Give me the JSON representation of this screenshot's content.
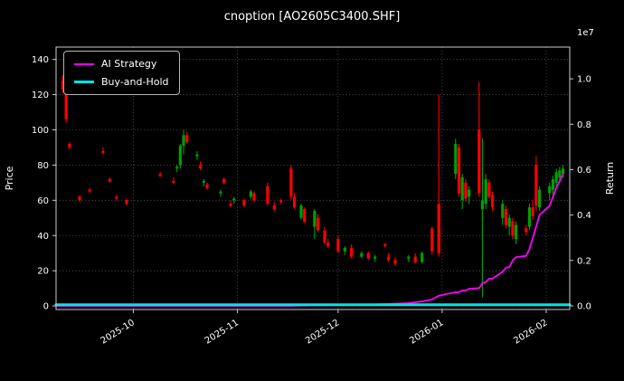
{
  "figure": {
    "background": "#000000",
    "text_color": "#ffffff"
  },
  "chart_data": {
    "type": "candlestick+line",
    "title": "cnoption [AO2605C3400.SHF]",
    "ylabel_left": "Price",
    "ylabel_right": "Return",
    "right_axis_multiplier": "1e7",
    "legend_position": "upper-left",
    "grid": true,
    "xlim": [
      "2025-09-08",
      "2026-02-08"
    ],
    "ylim_left": [
      -2,
      147
    ],
    "ylim_right": [
      -0.016,
      1.14
    ],
    "yticks_left": [
      0,
      20,
      40,
      60,
      80,
      100,
      120,
      140
    ],
    "yticks_right": [
      "0.0",
      "0.2",
      "0.4",
      "0.6",
      "0.8",
      "1.0"
    ],
    "xticks": [
      {
        "date": "2025-10-01",
        "label": "2025-10"
      },
      {
        "date": "2025-11-01",
        "label": "2025-11"
      },
      {
        "date": "2025-12-01",
        "label": "2025-12"
      },
      {
        "date": "2026-01-01",
        "label": "2026-01"
      },
      {
        "date": "2026-02-01",
        "label": "2026-02"
      }
    ],
    "colors": {
      "up": "#00a000",
      "down": "#ff0000",
      "ai": "#ff00ff",
      "bh": "#00e5e5",
      "grid": "#aaaaaa",
      "spine": "#cccccc",
      "text": "#ffffff",
      "background": "#000000"
    },
    "candles": [
      [
        "2025-09-10",
        128,
        131,
        121,
        123
      ],
      [
        "2025-09-11",
        122,
        124,
        104,
        106
      ],
      [
        "2025-09-12",
        92,
        93,
        89,
        90
      ],
      [
        "2025-09-15",
        62,
        63,
        59,
        60
      ],
      [
        "2025-09-18",
        66,
        67,
        64,
        65
      ],
      [
        "2025-09-22",
        88,
        90,
        86,
        87
      ],
      [
        "2025-09-24",
        72,
        73,
        70,
        71
      ],
      [
        "2025-09-26",
        62,
        63,
        60,
        61
      ],
      [
        "2025-09-29",
        60,
        61,
        57,
        58
      ],
      [
        "2025-10-09",
        75,
        76,
        73,
        74
      ],
      [
        "2025-10-13",
        71,
        73,
        69,
        70
      ],
      [
        "2025-10-14",
        78,
        80,
        76,
        79
      ],
      [
        "2025-10-15",
        80,
        92,
        78,
        91
      ],
      [
        "2025-10-16",
        91,
        100,
        86,
        97
      ],
      [
        "2025-10-17",
        97,
        99,
        92,
        93
      ],
      [
        "2025-10-20",
        85,
        88,
        83,
        86
      ],
      [
        "2025-10-21",
        80,
        82,
        77,
        78
      ],
      [
        "2025-10-22",
        70,
        72,
        68,
        71
      ],
      [
        "2025-10-23",
        69,
        70,
        66,
        67
      ],
      [
        "2025-10-27",
        64,
        66,
        62,
        65
      ],
      [
        "2025-10-28",
        72,
        73,
        69,
        70
      ],
      [
        "2025-10-30",
        58,
        60,
        56,
        57
      ],
      [
        "2025-10-31",
        60,
        62,
        58,
        61
      ],
      [
        "2025-11-03",
        60,
        61,
        56,
        57
      ],
      [
        "2025-11-05",
        62,
        66,
        61,
        65
      ],
      [
        "2025-11-06",
        64,
        65,
        59,
        60
      ],
      [
        "2025-11-10",
        68,
        70,
        57,
        58
      ],
      [
        "2025-11-12",
        57,
        59,
        54,
        55
      ],
      [
        "2025-11-14",
        60,
        61,
        58,
        59
      ],
      [
        "2025-11-17",
        78,
        80,
        60,
        62
      ],
      [
        "2025-11-18",
        62,
        64,
        55,
        56
      ],
      [
        "2025-11-20",
        50,
        58,
        49,
        57
      ],
      [
        "2025-11-21",
        55,
        56,
        47,
        48
      ],
      [
        "2025-11-24",
        45,
        55,
        38,
        54
      ],
      [
        "2025-11-25",
        50,
        52,
        42,
        43
      ],
      [
        "2025-11-27",
        43,
        45,
        35,
        36
      ],
      [
        "2025-11-28",
        36,
        38,
        33,
        34
      ],
      [
        "2025-12-01",
        38,
        40,
        30,
        31
      ],
      [
        "2025-12-03",
        31,
        34,
        29,
        33
      ],
      [
        "2025-12-05",
        33,
        35,
        27,
        28
      ],
      [
        "2025-12-08",
        28,
        31,
        27,
        30
      ],
      [
        "2025-12-10",
        30,
        31,
        26,
        27
      ],
      [
        "2025-12-12",
        27,
        29,
        25,
        28
      ],
      [
        "2025-12-15",
        35,
        36,
        33,
        34
      ],
      [
        "2025-12-16",
        28,
        30,
        25,
        26
      ],
      [
        "2025-12-18",
        26,
        28,
        23,
        24
      ],
      [
        "2025-12-22",
        27,
        29,
        25,
        28
      ],
      [
        "2025-12-24",
        28,
        30,
        24,
        25
      ],
      [
        "2025-12-26",
        25,
        31,
        24,
        30
      ],
      [
        "2025-12-29",
        44,
        45,
        29,
        31
      ],
      [
        "2025-12-31",
        58,
        120,
        28,
        30
      ],
      [
        "2026-01-05",
        75,
        95,
        72,
        92
      ],
      [
        "2026-01-06",
        90,
        92,
        62,
        64
      ],
      [
        "2026-01-07",
        60,
        75,
        55,
        73
      ],
      [
        "2026-01-08",
        70,
        72,
        59,
        61
      ],
      [
        "2026-01-09",
        62,
        68,
        58,
        66
      ],
      [
        "2026-01-12",
        100,
        127,
        62,
        64
      ],
      [
        "2026-01-13",
        55,
        95,
        5,
        60
      ],
      [
        "2026-01-14",
        58,
        75,
        55,
        72
      ],
      [
        "2026-01-15",
        70,
        72,
        61,
        62
      ],
      [
        "2026-01-16",
        63,
        65,
        54,
        56
      ],
      [
        "2026-01-19",
        50,
        60,
        46,
        58
      ],
      [
        "2026-01-20",
        55,
        57,
        44,
        46
      ],
      [
        "2026-01-21",
        45,
        52,
        40,
        50
      ],
      [
        "2026-01-22",
        48,
        50,
        38,
        40
      ],
      [
        "2026-01-23",
        38,
        48,
        35,
        46
      ],
      [
        "2026-01-26",
        44,
        46,
        40,
        42
      ],
      [
        "2026-01-27",
        45,
        58,
        43,
        56
      ],
      [
        "2026-01-28",
        56,
        60,
        49,
        51
      ],
      [
        "2026-01-29",
        80,
        85,
        54,
        57
      ],
      [
        "2026-01-30",
        56,
        68,
        54,
        66
      ],
      [
        "2026-02-02",
        64,
        70,
        60,
        68
      ],
      [
        "2026-02-03",
        66,
        74,
        63,
        72
      ],
      [
        "2026-02-04",
        70,
        78,
        67,
        76
      ],
      [
        "2026-02-05",
        73,
        79,
        71,
        77
      ],
      [
        "2026-02-06",
        75,
        80,
        73,
        78
      ]
    ],
    "series": [
      {
        "name": "AI Strategy",
        "color_key": "ai",
        "axis": "right",
        "width": 1.8,
        "points": [
          [
            "2025-09-08",
            0.0
          ],
          [
            "2025-10-15",
            0.0
          ],
          [
            "2025-11-15",
            0.0
          ],
          [
            "2025-12-05",
            0.004
          ],
          [
            "2025-12-15",
            0.008
          ],
          [
            "2025-12-22",
            0.012
          ],
          [
            "2025-12-26",
            0.02
          ],
          [
            "2025-12-29",
            0.028
          ],
          [
            "2025-12-31",
            0.045
          ],
          [
            "2026-01-05",
            0.06
          ],
          [
            "2026-01-06",
            0.06
          ],
          [
            "2026-01-07",
            0.068
          ],
          [
            "2026-01-08",
            0.068
          ],
          [
            "2026-01-09",
            0.075
          ],
          [
            "2026-01-12",
            0.078
          ],
          [
            "2026-01-13",
            0.1
          ],
          [
            "2026-01-14",
            0.105
          ],
          [
            "2026-01-15",
            0.12
          ],
          [
            "2026-01-16",
            0.12
          ],
          [
            "2026-01-19",
            0.15
          ],
          [
            "2026-01-20",
            0.168
          ],
          [
            "2026-01-21",
            0.17
          ],
          [
            "2026-01-22",
            0.2
          ],
          [
            "2026-01-23",
            0.215
          ],
          [
            "2026-01-26",
            0.22
          ],
          [
            "2026-01-27",
            0.25
          ],
          [
            "2026-01-28",
            0.3
          ],
          [
            "2026-01-29",
            0.35
          ],
          [
            "2026-01-30",
            0.4
          ],
          [
            "2026-02-02",
            0.44
          ],
          [
            "2026-02-03",
            0.48
          ],
          [
            "2026-02-04",
            0.52
          ],
          [
            "2026-02-05",
            0.55
          ],
          [
            "2026-02-06",
            0.58
          ]
        ]
      },
      {
        "name": "Buy-and-Hold",
        "color_key": "bh",
        "axis": "right",
        "width": 3,
        "points": [
          [
            "2025-09-08",
            0.005
          ],
          [
            "2026-02-08",
            0.005
          ]
        ]
      }
    ]
  }
}
